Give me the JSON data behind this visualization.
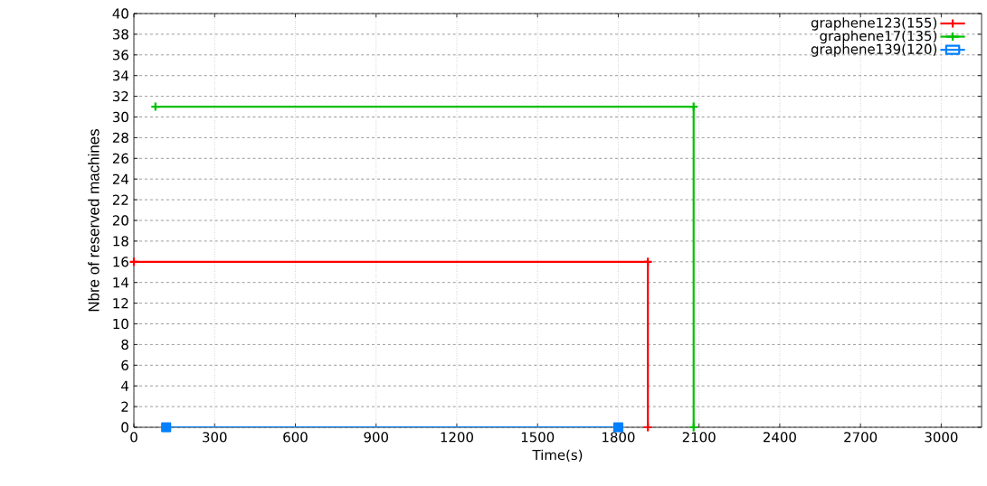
{
  "chart_data": {
    "type": "line",
    "xlabel": "Time(s)",
    "ylabel": "Nbre of reserved machines",
    "xlim": [
      0,
      3150
    ],
    "ylim": [
      0,
      40
    ],
    "xticks": [
      0,
      300,
      600,
      900,
      1200,
      1500,
      1800,
      2100,
      2400,
      2700,
      3000
    ],
    "yticks": [
      0,
      2,
      4,
      6,
      8,
      10,
      12,
      14,
      16,
      18,
      20,
      22,
      24,
      26,
      28,
      30,
      32,
      34,
      36,
      38,
      40
    ],
    "grid": true,
    "legend": "top right",
    "line_style": "solid",
    "series": [
      {
        "name": "graphene123(155)",
        "color": "#ff0000",
        "marker": "cross",
        "x": [
          0,
          1910,
          1910
        ],
        "values": [
          16,
          16,
          0
        ]
      },
      {
        "name": "graphene17(135)",
        "color": "#00c000",
        "marker": "cross",
        "x": [
          80,
          2080,
          2080
        ],
        "values": [
          31,
          31,
          0
        ]
      },
      {
        "name": "graphene139(120)",
        "color": "#0080ff",
        "marker": "square",
        "x": [
          120,
          1800
        ],
        "values": [
          0,
          0
        ]
      }
    ]
  }
}
